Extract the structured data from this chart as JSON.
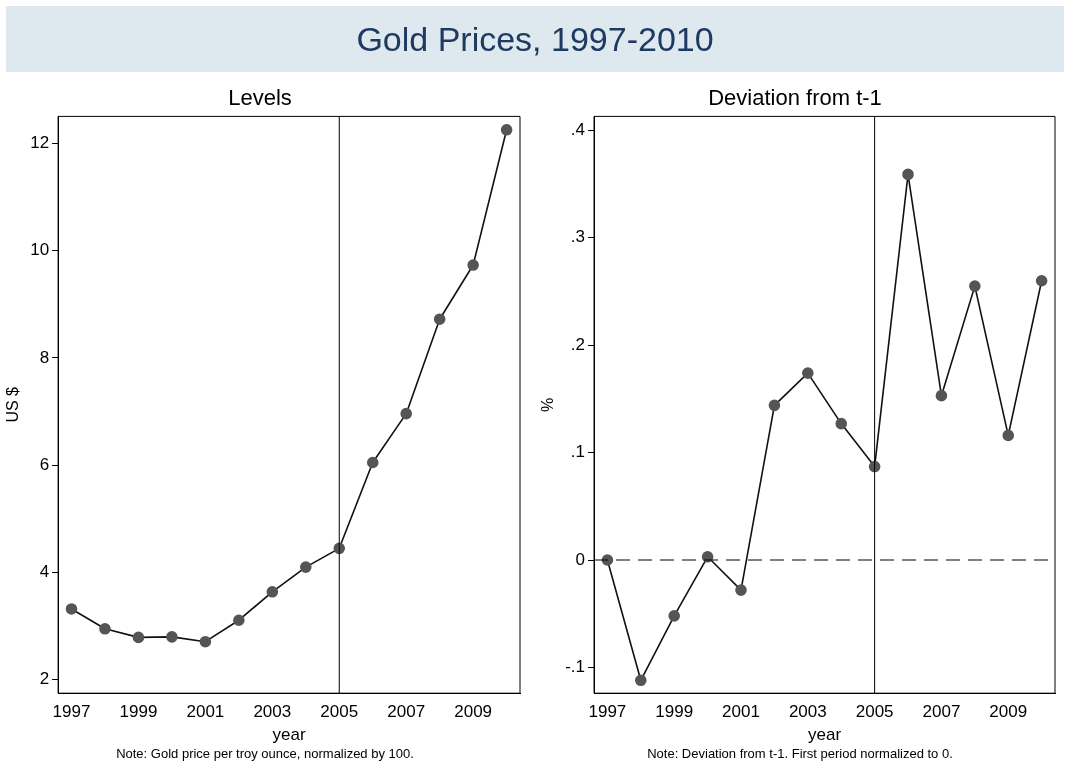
{
  "chart_data": [
    {
      "type": "line",
      "title": "Gold Prices, 1997-2010",
      "subtitle": "Levels",
      "xlabel": "year",
      "ylabel": "US $",
      "x": [
        1997,
        1998,
        1999,
        2000,
        2001,
        2002,
        2003,
        2004,
        2005,
        2006,
        2007,
        2008,
        2009,
        2010
      ],
      "series": [
        {
          "color": "#555555",
          "values": [
            3.32,
            2.95,
            2.79,
            2.8,
            2.71,
            3.11,
            3.64,
            4.1,
            4.45,
            6.05,
            6.96,
            8.72,
            9.73,
            12.25
          ]
        }
      ],
      "xlim": [
        1996.6,
        2010.4
      ],
      "xticks": [
        1997,
        1999,
        2001,
        2003,
        2005,
        2007,
        2009
      ],
      "ylim": [
        1.75,
        12.5
      ],
      "yticks": [
        2,
        4,
        6,
        8,
        10,
        12
      ],
      "ref_lines": [
        {
          "axis": "x",
          "value": 2005,
          "color": "#000000",
          "line_style": "solid"
        }
      ],
      "annotations": [
        "Note: Gold price per troy ounce, normalized by 100."
      ],
      "grid": false,
      "legend": false,
      "marker": "circle",
      "line_style": "solid"
    },
    {
      "type": "line",
      "subtitle": "Deviation from t-1",
      "xlabel": "year",
      "ylabel": "%",
      "x": [
        1997,
        1998,
        1999,
        2000,
        2001,
        2002,
        2003,
        2004,
        2005,
        2006,
        2007,
        2008,
        2009,
        2010
      ],
      "series": [
        {
          "color": "#555555",
          "values": [
            0,
            -0.112,
            -0.052,
            0.003,
            -0.028,
            0.144,
            0.174,
            0.127,
            0.087,
            0.359,
            0.153,
            0.255,
            0.116,
            0.26
          ]
        }
      ],
      "xlim": [
        1996.6,
        2010.4
      ],
      "xticks": [
        1997,
        1999,
        2001,
        2003,
        2005,
        2007,
        2009
      ],
      "ylim": [
        -0.124,
        0.413
      ],
      "yticks": [
        {
          "value": -0.1,
          "label": "-.1"
        },
        0,
        {
          "value": 0.1,
          "label": ".1"
        },
        {
          "value": 0.2,
          "label": ".2"
        },
        {
          "value": 0.3,
          "label": ".3"
        },
        {
          "value": 0.4,
          "label": ".4"
        }
      ],
      "ref_lines": [
        {
          "axis": "x",
          "value": 2005,
          "color": "#000000",
          "line_style": "solid"
        },
        {
          "axis": "y",
          "value": 0,
          "color": "#000000",
          "line_style": "dashed"
        }
      ],
      "annotations": [
        "Note: Deviation from t-1. First period normalized to 0."
      ],
      "grid": false,
      "legend": false,
      "marker": "circle",
      "line_style": "solid"
    }
  ]
}
